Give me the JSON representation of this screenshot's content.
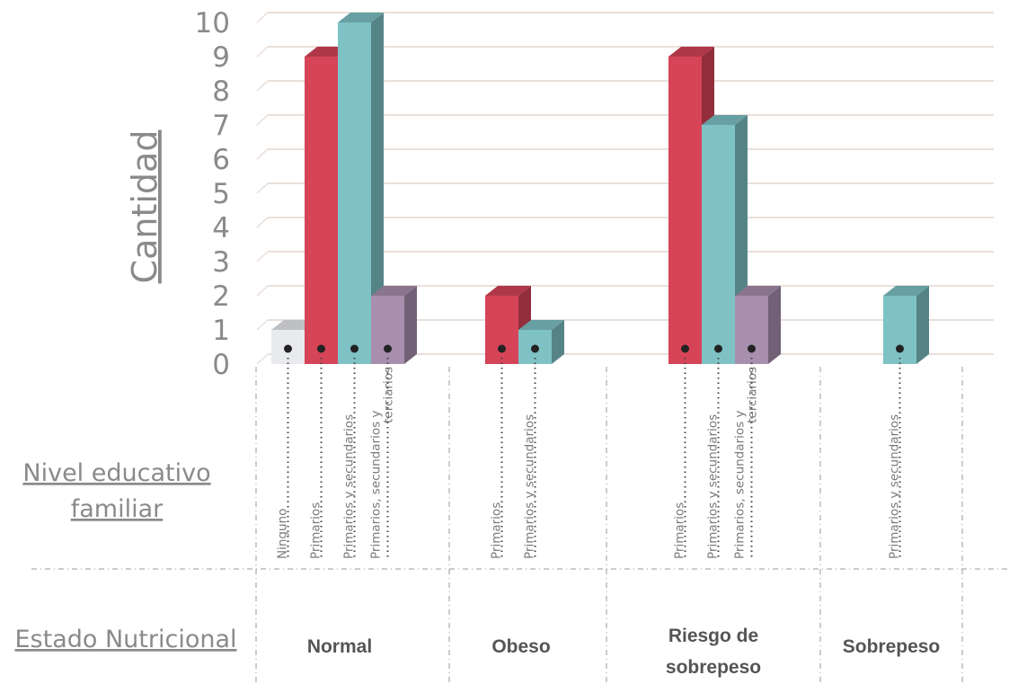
{
  "chart_data": {
    "type": "bar",
    "ylabel": "Cantidad",
    "ylim": [
      0,
      10
    ],
    "yticks": [
      "0",
      "1",
      "2",
      "3",
      "4",
      "5",
      "6",
      "7",
      "8",
      "9",
      "10"
    ],
    "grid": true,
    "level1_title": [
      "Nivel educativo",
      "familiar"
    ],
    "level2_title": "Estado Nutricional",
    "colors": {
      "Ninguno": "#e8eaee",
      "Primarios": "#d64458",
      "Primarios y secundarios": "#7fc2c5",
      "Primarios, secundarios y terciarios": "#a88fad"
    },
    "groups": [
      {
        "name": "Normal",
        "name_lines": [
          "Normal"
        ],
        "bars": [
          {
            "category": "Ninguno",
            "label_lines": [
              "Ninguno"
            ],
            "value": 1
          },
          {
            "category": "Primarios",
            "label_lines": [
              "Primarios"
            ],
            "value": 9
          },
          {
            "category": "Primarios y secundarios",
            "label_lines": [
              "Primarios y secundarios"
            ],
            "value": 10
          },
          {
            "category": "Primarios, secundarios y terciarios",
            "label_lines": [
              "Primarios, secundarios y",
              "terciarios"
            ],
            "value": 2
          }
        ]
      },
      {
        "name": "Obeso",
        "name_lines": [
          "Obeso"
        ],
        "bars": [
          {
            "category": "Primarios",
            "label_lines": [
              "Primarios"
            ],
            "value": 2
          },
          {
            "category": "Primarios y secundarios",
            "label_lines": [
              "Primarios y secundarios"
            ],
            "value": 1
          }
        ]
      },
      {
        "name": "Riesgo de sobrepeso",
        "name_lines": [
          "Riesgo de",
          "sobrepeso"
        ],
        "bars": [
          {
            "category": "Primarios",
            "label_lines": [
              "Primarios"
            ],
            "value": 9
          },
          {
            "category": "Primarios y secundarios",
            "label_lines": [
              "Primarios y secundarios"
            ],
            "value": 7
          },
          {
            "category": "Primarios, secundarios y terciarios",
            "label_lines": [
              "Primarios, secundarios y",
              "terciarios"
            ],
            "value": 2
          }
        ]
      },
      {
        "name": "Sobrepeso",
        "name_lines": [
          "Sobrepeso"
        ],
        "bars": [
          {
            "category": "Primarios y secundarios",
            "label_lines": [
              "Primarios y secundarios"
            ],
            "value": 2
          }
        ]
      }
    ]
  }
}
